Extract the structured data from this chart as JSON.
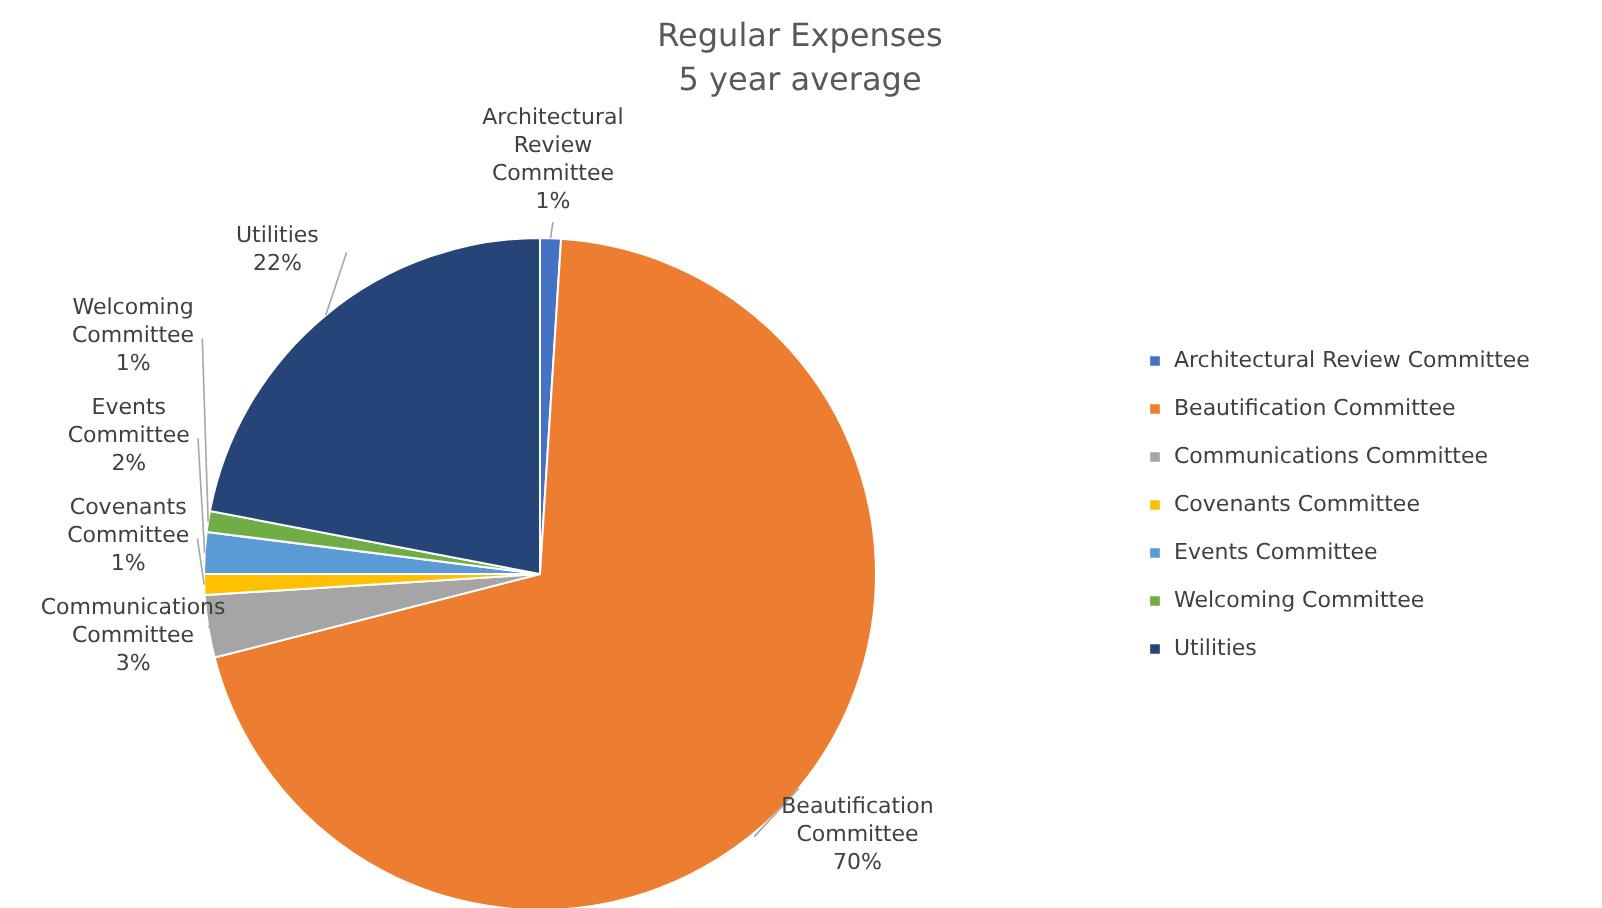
{
  "chart_data": {
    "type": "pie",
    "title": "Regular Expenses",
    "subtitle": "5 year average",
    "categories": [
      "Architectural Review Committee",
      "Beautification Committee",
      "Communications Committee",
      "Covenants Committee",
      "Events Committee",
      "Welcoming Committee",
      "Utilities"
    ],
    "values": [
      1,
      70,
      3,
      1,
      2,
      1,
      22
    ],
    "value_labels": [
      "1%",
      "70%",
      "3%",
      "1%",
      "2%",
      "1%",
      "22%"
    ],
    "colors": [
      "#4472c4",
      "#ed7d31",
      "#a5a5a5",
      "#ffc000",
      "#5b9bd5",
      "#70ad47",
      "#264478"
    ],
    "legend": "right"
  }
}
